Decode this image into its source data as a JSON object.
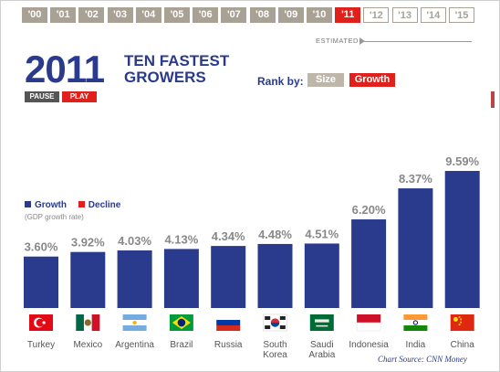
{
  "timeline": {
    "years": [
      "'00",
      "'01",
      "'02",
      "'03",
      "'04",
      "'05",
      "'06",
      "'07",
      "'08",
      "'09",
      "'10",
      "'11",
      "'12",
      "'13",
      "'14",
      "'15"
    ],
    "selected": "'11",
    "estimated_label": "ESTIMATED"
  },
  "header": {
    "year": "2011",
    "headline": "TEN FASTEST GROWERS",
    "pause_label": "PAUSE",
    "play_label": "PLAY"
  },
  "rank": {
    "label": "Rank by:",
    "size_label": "Size",
    "growth_label": "Growth"
  },
  "legend": {
    "growth_label": "Growth",
    "decline_label": "Decline",
    "note": "(GDP growth rate)"
  },
  "source": "Chart Source: CNN Money",
  "colors": {
    "growth": "#2a3a8c",
    "decline": "#e0201b",
    "past_year": "#a8a194",
    "selected_year": "#e0201b"
  },
  "chart_data": {
    "type": "bar",
    "categories": [
      "Turkey",
      "Mexico",
      "Argentina",
      "Brazil",
      "Russia",
      "South Korea",
      "Saudi Arabia",
      "Indonesia",
      "India",
      "China"
    ],
    "values": [
      3.6,
      3.92,
      4.03,
      4.13,
      4.34,
      4.48,
      4.51,
      6.2,
      8.37,
      9.59
    ],
    "value_labels": [
      "3.60%",
      "3.92%",
      "4.03%",
      "4.13%",
      "4.34%",
      "4.48%",
      "4.51%",
      "6.20%",
      "8.37%",
      "9.59%"
    ],
    "category_labels": [
      [
        "Turkey"
      ],
      [
        "Mexico"
      ],
      [
        "Argentina"
      ],
      [
        "Brazil"
      ],
      [
        "Russia"
      ],
      [
        "South",
        "Korea"
      ],
      [
        "Saudi",
        "Arabia"
      ],
      [
        "Indonesia"
      ],
      [
        "India"
      ],
      [
        "China"
      ]
    ],
    "flags": [
      "turkey-flag",
      "mexico-flag",
      "argentina-flag",
      "brazil-flag",
      "russia-flag",
      "south-korea-flag",
      "saudi-arabia-flag",
      "indonesia-flag",
      "india-flag",
      "china-flag"
    ],
    "title": "TEN FASTEST GROWERS",
    "ylabel": "",
    "ylim": [
      0,
      9.59
    ],
    "grid": false
  }
}
